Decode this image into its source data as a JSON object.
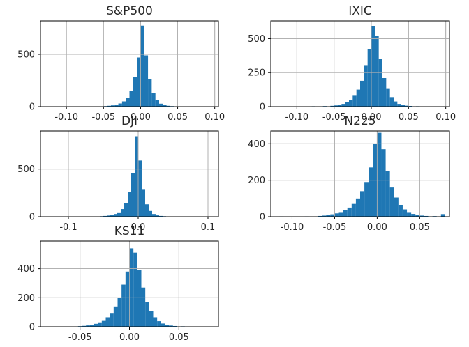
{
  "colors": {
    "bar": "#1f77b4",
    "grid": "#b0b0b0",
    "axis": "#000000"
  },
  "chart_data": [
    {
      "type": "bar",
      "title": "S&P500",
      "xlim": [
        -0.135,
        0.105
      ],
      "ylim": [
        0,
        820
      ],
      "grid": true,
      "xticks": [
        -0.1,
        -0.05,
        0.0,
        0.05,
        0.1
      ],
      "xtick_labels": [
        "-0.10",
        "-0.05",
        "0.00",
        "0.05",
        "0.10"
      ],
      "yticks": [
        0,
        500
      ],
      "ytick_labels": [
        "0",
        "500"
      ],
      "bin_width": 0.005,
      "bins": [
        [
          -0.125,
          2
        ],
        [
          -0.095,
          1
        ],
        [
          -0.07,
          2
        ],
        [
          -0.06,
          3
        ],
        [
          -0.05,
          5
        ],
        [
          -0.045,
          8
        ],
        [
          -0.04,
          12
        ],
        [
          -0.035,
          18
        ],
        [
          -0.03,
          30
        ],
        [
          -0.025,
          50
        ],
        [
          -0.02,
          85
        ],
        [
          -0.015,
          150
        ],
        [
          -0.01,
          280
        ],
        [
          -0.005,
          470
        ],
        [
          0.0,
          775
        ],
        [
          0.005,
          490
        ],
        [
          0.01,
          260
        ],
        [
          0.015,
          130
        ],
        [
          0.02,
          60
        ],
        [
          0.025,
          28
        ],
        [
          0.03,
          14
        ],
        [
          0.035,
          8
        ],
        [
          0.04,
          5
        ],
        [
          0.045,
          3
        ],
        [
          0.05,
          2
        ],
        [
          0.065,
          2
        ],
        [
          0.09,
          1
        ]
      ]
    },
    {
      "type": "bar",
      "title": "IXIC",
      "xlim": [
        -0.135,
        0.105
      ],
      "ylim": [
        0,
        630
      ],
      "grid": true,
      "xticks": [
        -0.1,
        -0.05,
        0.0,
        0.05,
        0.1
      ],
      "xtick_labels": [
        "-0.10",
        "-0.05",
        "0.00",
        "0.05",
        "0.10"
      ],
      "yticks": [
        0,
        250,
        500
      ],
      "ytick_labels": [
        "0",
        "250",
        "500"
      ],
      "bin_width": 0.005,
      "bins": [
        [
          -0.13,
          2
        ],
        [
          -0.1,
          2
        ],
        [
          -0.08,
          3
        ],
        [
          -0.065,
          4
        ],
        [
          -0.055,
          6
        ],
        [
          -0.05,
          9
        ],
        [
          -0.045,
          13
        ],
        [
          -0.04,
          20
        ],
        [
          -0.035,
          32
        ],
        [
          -0.03,
          50
        ],
        [
          -0.025,
          80
        ],
        [
          -0.02,
          125
        ],
        [
          -0.015,
          190
        ],
        [
          -0.01,
          300
        ],
        [
          -0.005,
          420
        ],
        [
          0.0,
          590
        ],
        [
          0.005,
          520
        ],
        [
          0.01,
          350
        ],
        [
          0.015,
          210
        ],
        [
          0.02,
          130
        ],
        [
          0.025,
          70
        ],
        [
          0.03,
          38
        ],
        [
          0.035,
          20
        ],
        [
          0.04,
          11
        ],
        [
          0.045,
          7
        ],
        [
          0.05,
          5
        ],
        [
          0.06,
          3
        ],
        [
          0.075,
          2
        ],
        [
          0.09,
          2
        ]
      ]
    },
    {
      "type": "bar",
      "title": "DJI",
      "xlim": [
        -0.14,
        0.115
      ],
      "ylim": [
        0,
        900
      ],
      "grid": true,
      "xticks": [
        -0.1,
        0.0,
        0.1
      ],
      "xtick_labels": [
        "-0.1",
        "0.0",
        "0.1"
      ],
      "yticks": [
        0,
        500
      ],
      "ytick_labels": [
        "0",
        "500"
      ],
      "bin_width": 0.005,
      "bins": [
        [
          -0.135,
          2
        ],
        [
          -0.1,
          1
        ],
        [
          -0.075,
          2
        ],
        [
          -0.065,
          3
        ],
        [
          -0.055,
          5
        ],
        [
          -0.05,
          8
        ],
        [
          -0.045,
          12
        ],
        [
          -0.04,
          18
        ],
        [
          -0.035,
          28
        ],
        [
          -0.03,
          45
        ],
        [
          -0.025,
          80
        ],
        [
          -0.02,
          140
        ],
        [
          -0.015,
          260
        ],
        [
          -0.01,
          460
        ],
        [
          -0.005,
          845
        ],
        [
          0.0,
          590
        ],
        [
          0.005,
          290
        ],
        [
          0.01,
          130
        ],
        [
          0.015,
          60
        ],
        [
          0.02,
          28
        ],
        [
          0.025,
          14
        ],
        [
          0.03,
          8
        ],
        [
          0.035,
          5
        ],
        [
          0.04,
          3
        ],
        [
          0.05,
          2
        ],
        [
          0.07,
          2
        ],
        [
          0.1,
          1
        ]
      ]
    },
    {
      "type": "bar",
      "title": "N225",
      "xlim": [
        -0.125,
        0.085
      ],
      "ylim": [
        0,
        470
      ],
      "grid": true,
      "xticks": [
        -0.1,
        -0.05,
        0.0,
        0.05
      ],
      "xtick_labels": [
        "-0.10",
        "-0.05",
        "0.00",
        "0.05"
      ],
      "yticks": [
        0,
        200,
        400
      ],
      "ytick_labels": [
        "0",
        "200",
        "400"
      ],
      "bin_width": 0.005,
      "bins": [
        [
          -0.115,
          2
        ],
        [
          -0.085,
          2
        ],
        [
          -0.07,
          4
        ],
        [
          -0.065,
          6
        ],
        [
          -0.06,
          9
        ],
        [
          -0.055,
          13
        ],
        [
          -0.05,
          18
        ],
        [
          -0.045,
          25
        ],
        [
          -0.04,
          35
        ],
        [
          -0.035,
          50
        ],
        [
          -0.03,
          70
        ],
        [
          -0.025,
          100
        ],
        [
          -0.02,
          140
        ],
        [
          -0.015,
          190
        ],
        [
          -0.01,
          270
        ],
        [
          -0.005,
          400
        ],
        [
          0.0,
          460
        ],
        [
          0.005,
          370
        ],
        [
          0.01,
          250
        ],
        [
          0.015,
          160
        ],
        [
          0.02,
          105
        ],
        [
          0.025,
          65
        ],
        [
          0.03,
          40
        ],
        [
          0.035,
          25
        ],
        [
          0.04,
          15
        ],
        [
          0.045,
          10
        ],
        [
          0.05,
          6
        ],
        [
          0.055,
          4
        ],
        [
          0.065,
          3
        ],
        [
          0.075,
          14
        ]
      ]
    },
    {
      "type": "bar",
      "title": "KS11",
      "xlim": [
        -0.09,
        0.09
      ],
      "ylim": [
        0,
        590
      ],
      "grid": true,
      "xticks": [
        -0.05,
        0.0,
        0.05
      ],
      "xtick_labels": [
        "-0.05",
        "0.00",
        "0.05"
      ],
      "yticks": [
        0,
        200,
        400
      ],
      "ytick_labels": [
        "0",
        "200",
        "400"
      ],
      "bin_width": 0.004,
      "bins": [
        [
          -0.084,
          2
        ],
        [
          -0.064,
          2
        ],
        [
          -0.052,
          4
        ],
        [
          -0.048,
          6
        ],
        [
          -0.044,
          9
        ],
        [
          -0.04,
          14
        ],
        [
          -0.036,
          20
        ],
        [
          -0.032,
          30
        ],
        [
          -0.028,
          45
        ],
        [
          -0.024,
          65
        ],
        [
          -0.02,
          95
        ],
        [
          -0.016,
          140
        ],
        [
          -0.012,
          200
        ],
        [
          -0.008,
          290
        ],
        [
          -0.004,
          380
        ],
        [
          0.0,
          540
        ],
        [
          0.004,
          510
        ],
        [
          0.008,
          390
        ],
        [
          0.012,
          270
        ],
        [
          0.016,
          170
        ],
        [
          0.02,
          110
        ],
        [
          0.024,
          65
        ],
        [
          0.028,
          38
        ],
        [
          0.032,
          22
        ],
        [
          0.036,
          13
        ],
        [
          0.04,
          8
        ],
        [
          0.044,
          5
        ],
        [
          0.052,
          3
        ],
        [
          0.068,
          2
        ]
      ]
    }
  ]
}
